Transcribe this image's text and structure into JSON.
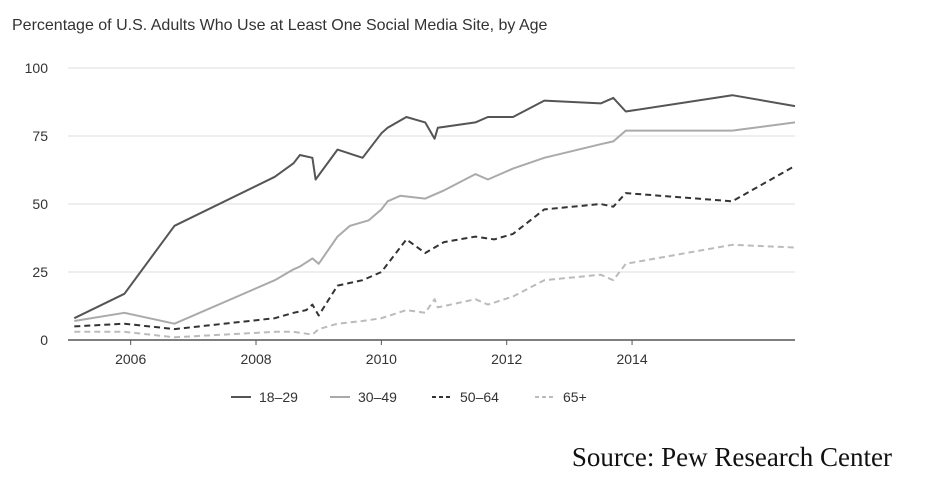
{
  "source": "Source: Pew Research Center",
  "chart_data": {
    "type": "line",
    "title": "Percentage of U.S. Adults Who Use at Least One Social Media Site, by Age",
    "xlabel": "",
    "ylabel": "",
    "xlim": [
      2005.0,
      2016.6
    ],
    "ylim": [
      0,
      100
    ],
    "y_ticks": [
      0,
      25,
      50,
      75,
      100
    ],
    "x_ticks": [
      2006,
      2008,
      2010,
      2012,
      2014
    ],
    "grid": "horizontal",
    "legend_position": "bottom",
    "series": [
      {
        "name": "18–29",
        "color": "#555555",
        "dash": "solid",
        "x": [
          2005.1,
          2005.9,
          2006.7,
          2008.3,
          2008.6,
          2008.7,
          2008.9,
          2008.95,
          2009.3,
          2009.7,
          2010.0,
          2010.1,
          2010.4,
          2010.7,
          2010.85,
          2010.9,
          2011.5,
          2011.7,
          2012.1,
          2012.6,
          2013.5,
          2013.7,
          2013.9,
          2015.6,
          2016.6
        ],
        "y": [
          8,
          17,
          42,
          60,
          65,
          68,
          67,
          59,
          70,
          67,
          76,
          78,
          82,
          80,
          74,
          78,
          80,
          82,
          82,
          88,
          87,
          89,
          84,
          90,
          86
        ]
      },
      {
        "name": "30–49",
        "color": "#aaaaaa",
        "dash": "solid",
        "x": [
          2005.1,
          2005.9,
          2006.7,
          2008.3,
          2008.6,
          2008.7,
          2008.9,
          2009.0,
          2009.3,
          2009.5,
          2009.8,
          2010.0,
          2010.1,
          2010.3,
          2010.7,
          2011.0,
          2011.5,
          2011.7,
          2012.1,
          2012.6,
          2013.5,
          2013.7,
          2013.9,
          2015.6,
          2016.6
        ],
        "y": [
          7,
          10,
          6,
          22,
          26,
          27,
          30,
          28,
          38,
          42,
          44,
          48,
          51,
          53,
          52,
          55,
          61,
          59,
          63,
          67,
          72,
          73,
          77,
          77,
          80
        ]
      },
      {
        "name": "50–64",
        "color": "#333333",
        "dash": "6 4",
        "x": [
          2005.1,
          2005.9,
          2006.7,
          2008.3,
          2008.6,
          2008.8,
          2008.9,
          2009.0,
          2009.3,
          2009.7,
          2010.0,
          2010.4,
          2010.7,
          2011.0,
          2011.5,
          2011.8,
          2012.1,
          2012.6,
          2013.5,
          2013.7,
          2013.9,
          2015.6,
          2016.6
        ],
        "y": [
          5,
          6,
          4,
          8,
          10,
          11,
          13,
          9,
          20,
          22,
          25,
          37,
          32,
          36,
          38,
          37,
          39,
          48,
          50,
          49,
          54,
          51,
          64
        ]
      },
      {
        "name": "65+",
        "color": "#bbbbbb",
        "dash": "6 4",
        "x": [
          2005.1,
          2005.9,
          2006.7,
          2008.3,
          2008.6,
          2008.9,
          2009.0,
          2009.3,
          2009.7,
          2010.0,
          2010.4,
          2010.7,
          2010.85,
          2010.9,
          2011.5,
          2011.7,
          2012.1,
          2012.6,
          2013.5,
          2013.7,
          2013.9,
          2015.6,
          2016.6
        ],
        "y": [
          3,
          3,
          1,
          3,
          3,
          2,
          4,
          6,
          7,
          8,
          11,
          10,
          15,
          12,
          15,
          13,
          16,
          22,
          24,
          22,
          28,
          35,
          34
        ]
      }
    ]
  }
}
